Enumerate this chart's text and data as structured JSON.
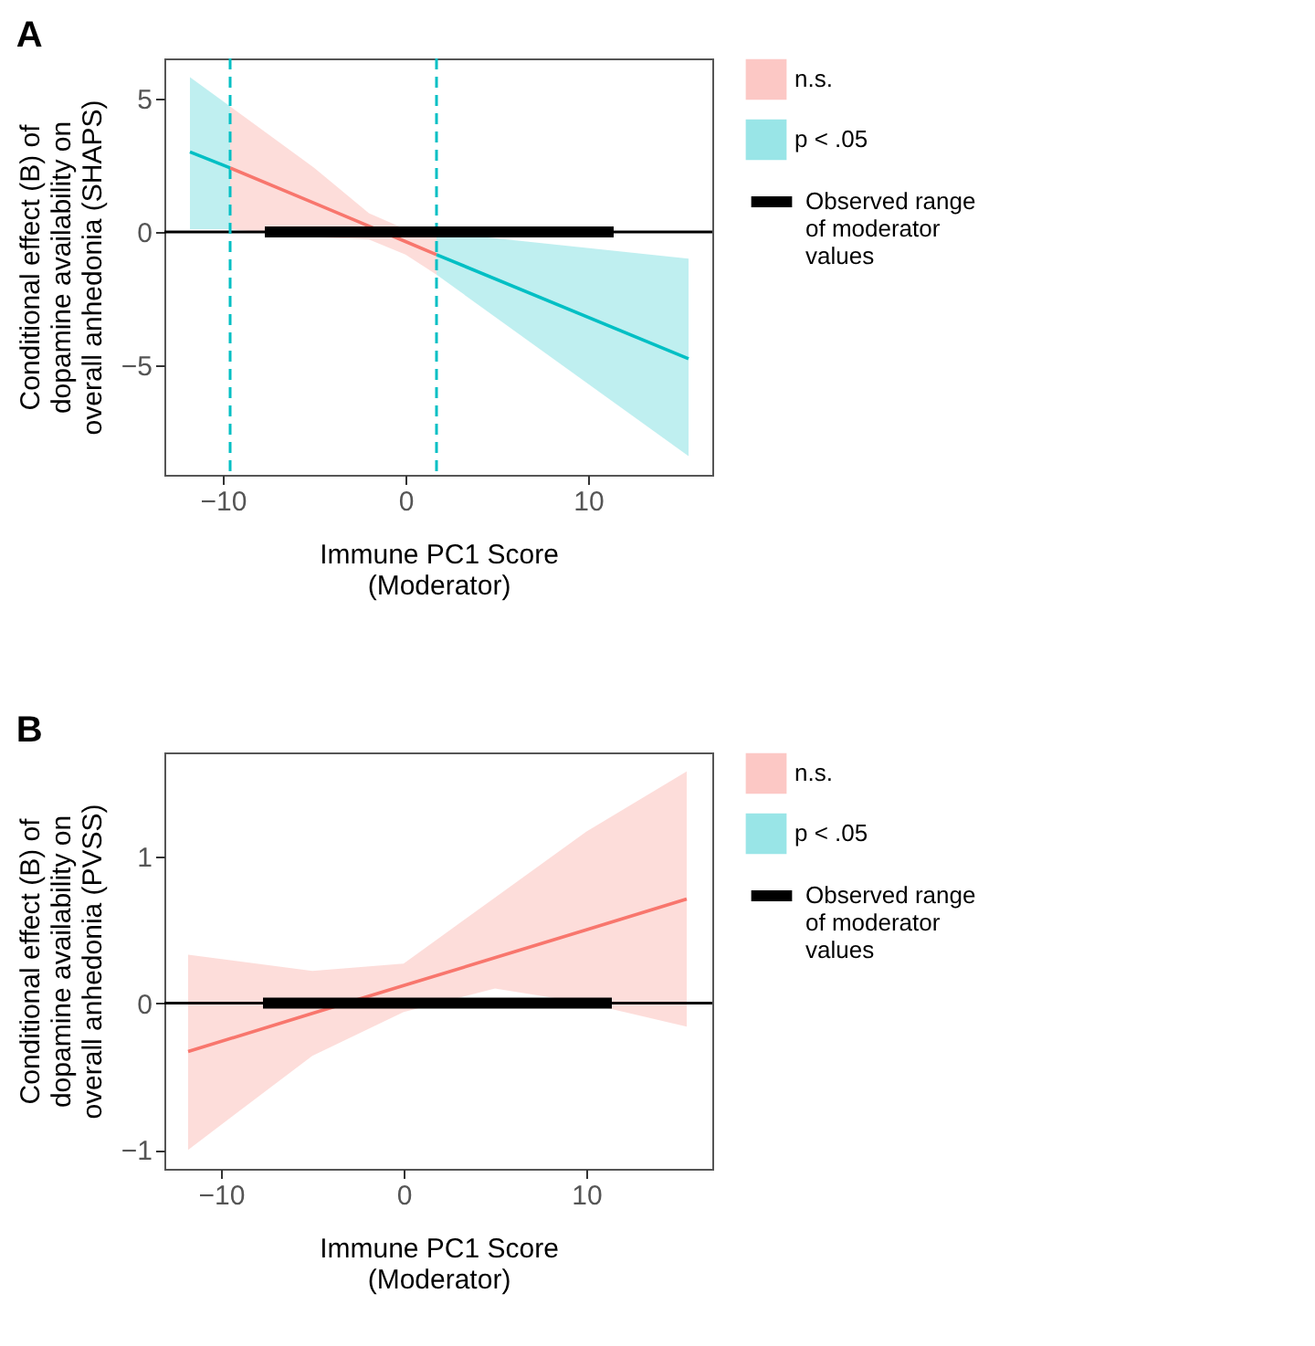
{
  "chart_data": [
    {
      "type": "line",
      "title": "A",
      "xlabel": "Immune PC1 Score\n(Moderator)",
      "ylabel": "Conditional effect (B) of\ndopamine availability on\noverall anhedonia (SHAPS)",
      "xlim": [
        -13.2,
        16.8
      ],
      "ylim": [
        -9.1,
        6.5
      ],
      "xticks": [
        -10,
        0,
        10
      ],
      "yticks": [
        -5,
        0,
        5
      ],
      "legend": "right",
      "series": [
        {
          "name": "Observed range of moderator values",
          "color": "#000000",
          "x": [
            -7.7,
            11.4
          ],
          "values": [
            0,
            0
          ]
        },
        {
          "name": "n.s.",
          "color": "#f8766d",
          "x": [
            -9.6,
            -5,
            -2,
            0,
            1.7
          ],
          "values": [
            2.4,
            1.08,
            0.22,
            -0.36,
            -0.85
          ],
          "lower": [
            0.1,
            -0.2,
            -0.28,
            -0.85,
            -1.6
          ],
          "upper": [
            4.7,
            2.4,
            0.7,
            0.1,
            0.0
          ]
        },
        {
          "name": "p < .05",
          "color": "#00bfc4",
          "x": [
            -11.8,
            -9.6
          ],
          "values": [
            3.0,
            2.4
          ],
          "lower": [
            0.1,
            0.1
          ],
          "upper": [
            5.8,
            4.7
          ]
        },
        {
          "name": "p < .05",
          "color": "#00bfc4",
          "x": [
            1.7,
            15.5
          ],
          "values": [
            -0.85,
            -4.75
          ],
          "lower": [
            -1.6,
            -8.4
          ],
          "upper": [
            0.0,
            -1.0
          ]
        }
      ],
      "ref_lines": [
        {
          "axis": "y",
          "value": 0,
          "color": "#000000",
          "line_style": "solid"
        },
        {
          "axis": "x",
          "value": -9.6,
          "color": "#00bfc4",
          "line_style": "dashed"
        },
        {
          "axis": "x",
          "value": 1.7,
          "color": "#00bfc4",
          "line_style": "dashed"
        }
      ]
    },
    {
      "type": "line",
      "title": "B",
      "xlabel": "Immune PC1 Score\n(Moderator)",
      "ylabel": "Conditional effect (B) of\ndopamine availability on\noverall anhedonia (PVSS)",
      "xlim": [
        -13.1,
        16.9
      ],
      "ylim": [
        -1.13,
        1.71
      ],
      "xticks": [
        -10,
        0,
        10
      ],
      "yticks": [
        -1,
        0,
        1
      ],
      "legend": "right",
      "series": [
        {
          "name": "Observed range of moderator values",
          "color": "#000000",
          "x": [
            -7.7,
            11.4
          ],
          "values": [
            0,
            0
          ]
        },
        {
          "name": "n.s.",
          "color": "#f8766d",
          "x": [
            -11.8,
            -5,
            0,
            5,
            10,
            15.5
          ],
          "values": [
            -0.33,
            -0.07,
            0.12,
            0.31,
            0.5,
            0.71
          ],
          "lower": [
            -1.0,
            -0.36,
            -0.06,
            0.1,
            0.0,
            -0.16
          ],
          "upper": [
            0.33,
            0.22,
            0.27,
            0.72,
            1.17,
            1.58
          ]
        },
        {
          "name": "p < .05",
          "color": "#00bfc4"
        }
      ],
      "ref_lines": [
        {
          "axis": "y",
          "value": 0,
          "color": "#000000",
          "line_style": "solid"
        }
      ]
    }
  ]
}
